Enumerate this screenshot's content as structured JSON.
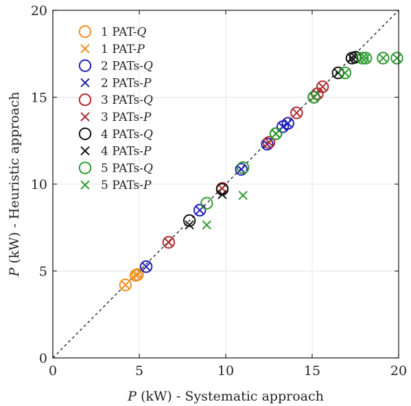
{
  "chart_data": {
    "type": "scatter",
    "xlabel_var": "P",
    "xlabel_rest": " (kW) - Systematic approach",
    "ylabel_var": "P",
    "ylabel_rest": " (kW) - Heuristic approach",
    "xlim": [
      0,
      20
    ],
    "ylim": [
      0,
      20
    ],
    "xticks": [
      "0",
      "5",
      "10",
      "15",
      "20"
    ],
    "yticks": [
      "0",
      "5",
      "10",
      "15",
      "20"
    ],
    "grid": true,
    "legend_position": "top-left",
    "reference_line": "y = x (dashed)",
    "series": [
      {
        "name_prefix": "1 PAT-",
        "name_var": "Q",
        "marker": "circle",
        "color": "#f28e1c",
        "points": [
          [
            4.2,
            4.2
          ],
          [
            4.8,
            4.75
          ],
          [
            4.9,
            4.8
          ]
        ]
      },
      {
        "name_prefix": "1 PAT-",
        "name_var": "P",
        "marker": "x",
        "color": "#f28e1c",
        "points": [
          [
            4.2,
            4.2
          ],
          [
            4.8,
            4.75
          ],
          [
            4.9,
            4.8
          ]
        ]
      },
      {
        "name_prefix": "2 PATs-",
        "name_var": "Q",
        "marker": "circle",
        "color": "#1f1fb4",
        "points": [
          [
            5.4,
            5.25
          ],
          [
            8.5,
            8.5
          ],
          [
            10.9,
            10.85
          ],
          [
            12.4,
            12.3
          ],
          [
            13.3,
            13.3
          ],
          [
            13.6,
            13.5
          ]
        ]
      },
      {
        "name_prefix": "2 PATs-",
        "name_var": "P",
        "marker": "x",
        "color": "#1f1fb4",
        "points": [
          [
            5.4,
            5.25
          ],
          [
            8.5,
            8.5
          ],
          [
            10.9,
            10.85
          ],
          [
            12.4,
            12.3
          ],
          [
            13.3,
            13.3
          ],
          [
            13.6,
            13.5
          ]
        ]
      },
      {
        "name_prefix": "3 PATs-",
        "name_var": "Q",
        "marker": "circle",
        "color": "#b0282e",
        "points": [
          [
            6.7,
            6.65
          ],
          [
            9.8,
            9.75
          ],
          [
            12.5,
            12.4
          ],
          [
            14.1,
            14.1
          ],
          [
            15.3,
            15.2
          ],
          [
            15.6,
            15.6
          ]
        ]
      },
      {
        "name_prefix": "3 PATs-",
        "name_var": "P",
        "marker": "x",
        "color": "#b0282e",
        "points": [
          [
            6.7,
            6.65
          ],
          [
            9.8,
            9.75
          ],
          [
            12.5,
            12.4
          ],
          [
            14.1,
            14.1
          ],
          [
            15.3,
            15.2
          ],
          [
            15.6,
            15.6
          ]
        ]
      },
      {
        "name_prefix": "4 PATs-",
        "name_var": "Q",
        "marker": "circle",
        "color": "#111111",
        "points": [
          [
            7.9,
            7.9
          ],
          [
            9.8,
            9.7
          ],
          [
            12.9,
            12.9
          ],
          [
            15.1,
            15.0
          ],
          [
            16.5,
            16.4
          ],
          [
            17.3,
            17.25
          ],
          [
            17.5,
            17.3
          ]
        ]
      },
      {
        "name_prefix": "4 PATs-",
        "name_var": "P",
        "marker": "x",
        "color": "#111111",
        "points": [
          [
            7.9,
            7.65
          ],
          [
            9.8,
            9.4
          ],
          [
            12.9,
            12.9
          ],
          [
            15.1,
            15.0
          ],
          [
            16.5,
            16.4
          ],
          [
            17.3,
            17.25
          ],
          [
            17.5,
            17.3
          ]
        ]
      },
      {
        "name_prefix": "5 PATs-",
        "name_var": "Q",
        "marker": "circle",
        "color": "#2e9a2e",
        "points": [
          [
            8.9,
            8.9
          ],
          [
            11.0,
            10.95
          ],
          [
            12.9,
            12.9
          ],
          [
            15.1,
            15.0
          ],
          [
            16.9,
            16.4
          ],
          [
            17.9,
            17.25
          ],
          [
            18.1,
            17.25
          ],
          [
            19.1,
            17.25
          ],
          [
            19.9,
            17.25
          ]
        ]
      },
      {
        "name_prefix": "5 PATs-",
        "name_var": "P",
        "marker": "x",
        "color": "#2e9a2e",
        "points": [
          [
            8.9,
            7.65
          ],
          [
            11.0,
            9.35
          ],
          [
            12.9,
            12.9
          ],
          [
            15.1,
            15.0
          ],
          [
            16.9,
            16.4
          ],
          [
            17.9,
            17.25
          ],
          [
            18.1,
            17.25
          ],
          [
            19.1,
            17.25
          ],
          [
            19.9,
            17.25
          ]
        ]
      }
    ]
  }
}
